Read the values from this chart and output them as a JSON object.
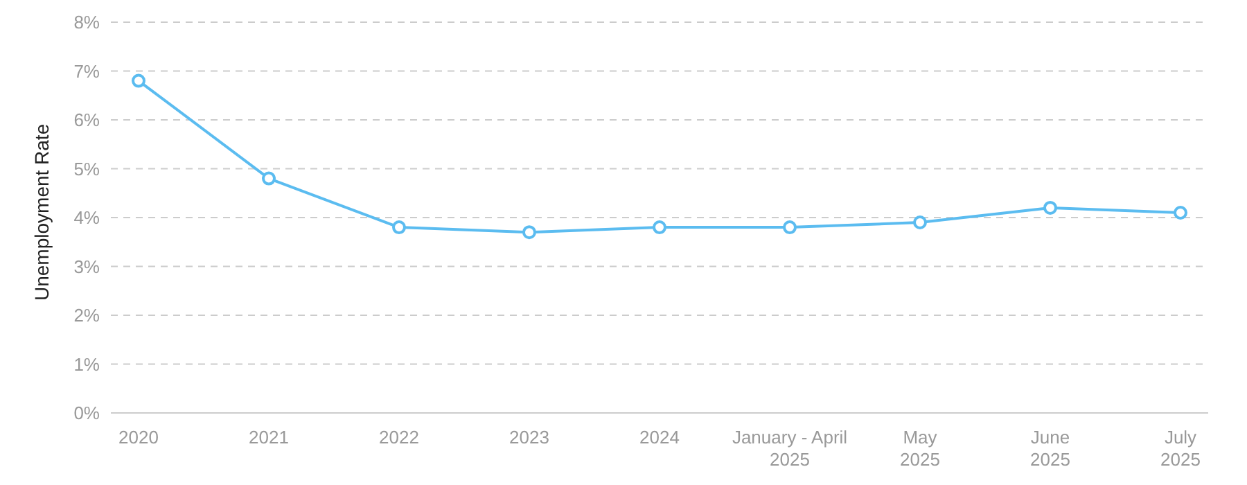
{
  "chart_data": {
    "type": "line",
    "ylabel": "Unemployment Rate",
    "categories": [
      "2020",
      "2021",
      "2022",
      "2023",
      "2024",
      "January - April 2025",
      "May 2025",
      "June 2025",
      "July 2025"
    ],
    "series": [
      {
        "color": "#5bbcf0",
        "values": [
          6.8,
          4.8,
          3.8,
          3.7,
          3.8,
          3.8,
          3.9,
          4.2,
          4.1
        ]
      }
    ],
    "ylim": [
      0,
      8
    ],
    "yticks": [
      {
        "value": 0,
        "label": "0%"
      },
      {
        "value": 1,
        "label": "1%"
      },
      {
        "value": 2,
        "label": "2%"
      },
      {
        "value": 3,
        "label": "3%"
      },
      {
        "value": 4,
        "label": "4%"
      },
      {
        "value": 5,
        "label": "5%"
      },
      {
        "value": 6,
        "label": "6%"
      },
      {
        "value": 7,
        "label": "7%"
      },
      {
        "value": 8,
        "label": "8%"
      }
    ],
    "grid": "y",
    "legend": false,
    "marker": "circle",
    "line_style": "solid"
  }
}
